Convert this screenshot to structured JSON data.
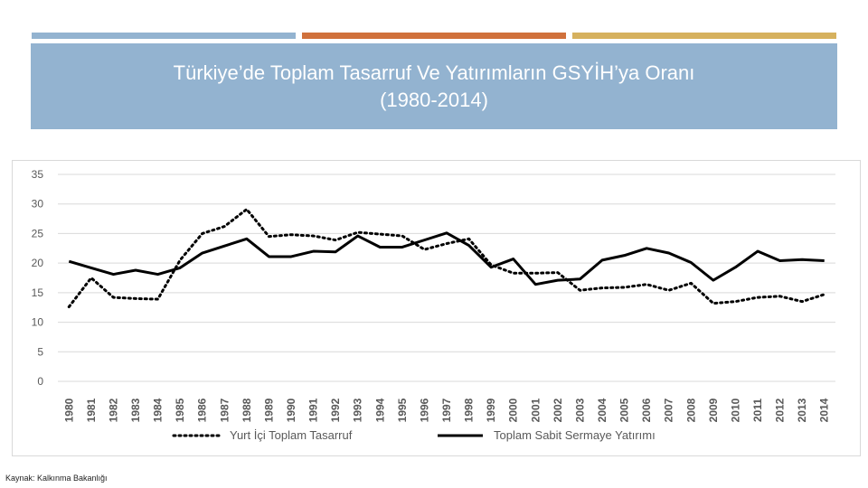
{
  "slide": {
    "title_line1": "Türkiye’de Toplam Tasarruf Ve Yatırımların GSYİH’ya Oranı",
    "title_line2": "(1980-2014)",
    "source": "Kaynak: Kalkınma Bakanlığı"
  },
  "colors": {
    "accent_blue": "#93b3d0",
    "accent_orange": "#d0713c",
    "accent_gold": "#d6b15e",
    "title_bg": "#93b3d0",
    "grid": "#d9d9d9",
    "axis_text": "#595959",
    "series": "#000000"
  },
  "chart_data": {
    "type": "line",
    "title": "",
    "xlabel": "",
    "ylabel": "",
    "ylim": [
      0,
      35
    ],
    "yticks": [
      0,
      5,
      10,
      15,
      20,
      25,
      30,
      35
    ],
    "grid": true,
    "legend_position": "bottom",
    "categories": [
      "1980",
      "1981",
      "1982",
      "1983",
      "1984",
      "1985",
      "1986",
      "1987",
      "1988",
      "1989",
      "1990",
      "1991",
      "1992",
      "1993",
      "1994",
      "1995",
      "1996",
      "1997",
      "1998",
      "1999",
      "2000",
      "2001",
      "2002",
      "2003",
      "2004",
      "2005",
      "2006",
      "2007",
      "2008",
      "2009",
      "2010",
      "2011",
      "2012",
      "2013",
      "2014"
    ],
    "series": [
      {
        "name": "Yurt İçi Toplam Tasarruf",
        "style": "dotted",
        "values": [
          12.6,
          17.5,
          14.2,
          14.0,
          13.9,
          20.5,
          25.0,
          26.2,
          29.1,
          24.5,
          24.8,
          24.6,
          23.9,
          25.2,
          24.9,
          24.6,
          22.3,
          23.3,
          24.1,
          19.7,
          18.3,
          18.3,
          18.4,
          15.4,
          15.8,
          15.9,
          16.4,
          15.4,
          16.6,
          13.2,
          13.5,
          14.2,
          14.4,
          13.5,
          14.7
        ]
      },
      {
        "name": "Toplam Sabit Sermaye Yatırımı",
        "style": "solid",
        "values": [
          20.3,
          19.2,
          18.1,
          18.8,
          18.1,
          19.2,
          21.7,
          22.9,
          24.1,
          21.1,
          21.1,
          22.0,
          21.9,
          24.6,
          22.7,
          22.7,
          23.9,
          25.1,
          23.0,
          19.3,
          20.7,
          16.4,
          17.1,
          17.3,
          20.5,
          21.3,
          22.5,
          21.7,
          20.1,
          17.1,
          19.3,
          22.0,
          20.4,
          20.6,
          20.4
        ]
      }
    ]
  }
}
